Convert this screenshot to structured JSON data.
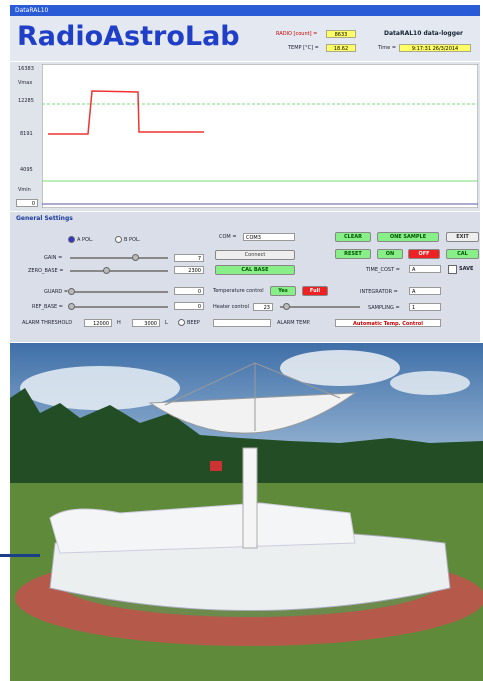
{
  "window_title": "DataRAL10",
  "header": {
    "logo": "RadioAstroLab",
    "radio_label": "RADIO [count] =",
    "radio_value": "8633",
    "temp_label": "TEMP [°C] =",
    "temp_value": "18.62",
    "app_title": "DataRAL10 data-logger",
    "time_label": "Time =",
    "time_value": "9:17:31 26/3/2014"
  },
  "plot": {
    "y_labels": [
      "16383",
      "Vmax",
      "12285",
      "8191",
      "4095",
      "Vmin",
      "0"
    ]
  },
  "settings": {
    "title": "General Settings",
    "pol_a": "A POL.",
    "pol_b": "B POL.",
    "gain_label": "GAIN =",
    "gain_value": "7",
    "zero_label": "ZERO_BASE =",
    "zero_value": "2300",
    "guard_label": "GUARD =",
    "guard_value": "0",
    "ref_label": "REF_BASE =",
    "ref_value": "0",
    "alarm_label": "ALARM THRESHOLD",
    "alarm_h_value": "12000",
    "alarm_h": "H",
    "alarm_l_value": "3000",
    "alarm_l": "L",
    "beep": "BEEP",
    "alarm_temp": "ALARM TEMP.",
    "com_label": "COM =",
    "com_value": "COM3",
    "connect": "Connect",
    "cal_base": "CAL BASE",
    "temp_control": "Temperature control",
    "temp_yes": "Yes",
    "temp_full": "Full",
    "heater_control": "Heater control",
    "heater_value": "23",
    "clear": "CLEAR",
    "one_sample": "ONE SAMPLE",
    "exit": "EXIT",
    "reset": "RESET",
    "on": "ON",
    "off": "OFF",
    "cal": "CAL",
    "time_cost_label": "TIME_COST =",
    "time_cost_value": "A",
    "save": "SAVE",
    "integrator_label": "INTEGRATOR =",
    "integrator_value": "A",
    "sampling_label": "SAMPLING =",
    "sampling_value": "1",
    "auto_temp": "Automatic Temp. Control"
  }
}
